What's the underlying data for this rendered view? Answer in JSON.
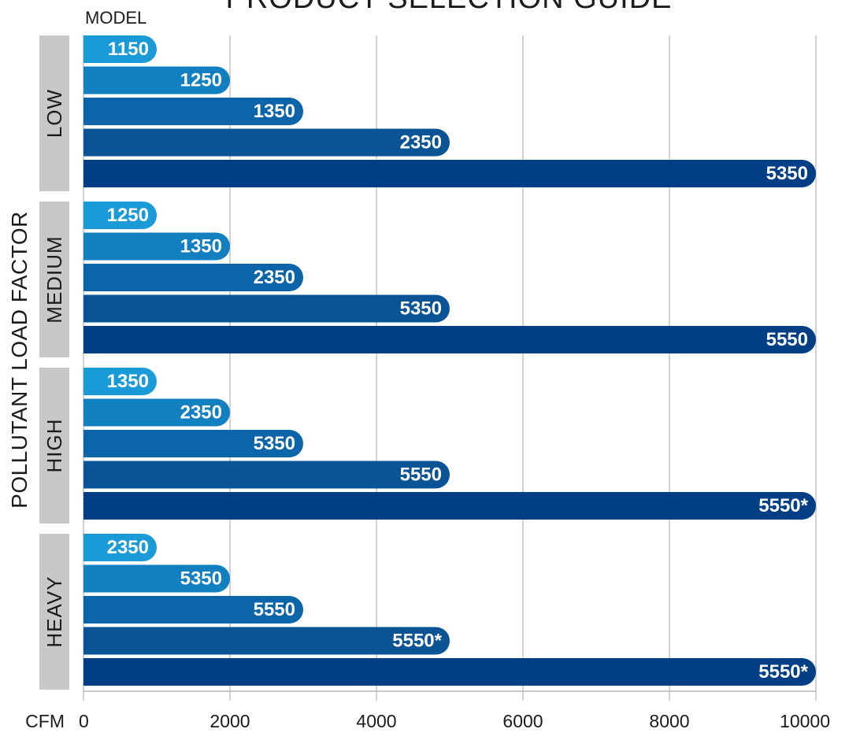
{
  "title": "PRODUCT SELECTION GUIDE",
  "chart_data": {
    "type": "bar",
    "orientation": "horizontal",
    "title": "PRODUCT SELECTION GUIDE",
    "bar_label_header": "MODEL",
    "ylabel": "POLLUTANT LOAD FACTOR",
    "xlabel": "CFM",
    "xlim": [
      0,
      10000
    ],
    "xticks": [
      0,
      2000,
      4000,
      6000,
      8000,
      10000
    ],
    "grid": true,
    "groups": [
      {
        "name": "LOW",
        "bars": [
          {
            "model": "1150",
            "cfm": 1000
          },
          {
            "model": "1250",
            "cfm": 2000
          },
          {
            "model": "1350",
            "cfm": 3000
          },
          {
            "model": "2350",
            "cfm": 5000
          },
          {
            "model": "5350",
            "cfm": 10000
          }
        ]
      },
      {
        "name": "MEDIUM",
        "bars": [
          {
            "model": "1250",
            "cfm": 1000
          },
          {
            "model": "1350",
            "cfm": 2000
          },
          {
            "model": "2350",
            "cfm": 3000
          },
          {
            "model": "5350",
            "cfm": 5000
          },
          {
            "model": "5550",
            "cfm": 10000
          }
        ]
      },
      {
        "name": "HIGH",
        "bars": [
          {
            "model": "1350",
            "cfm": 1000
          },
          {
            "model": "2350",
            "cfm": 2000
          },
          {
            "model": "5350",
            "cfm": 3000
          },
          {
            "model": "5550",
            "cfm": 5000
          },
          {
            "model": "5550*",
            "cfm": 10000
          }
        ]
      },
      {
        "name": "HEAVY",
        "bars": [
          {
            "model": "2350",
            "cfm": 1000
          },
          {
            "model": "5350",
            "cfm": 2000
          },
          {
            "model": "5550",
            "cfm": 3000
          },
          {
            "model": "5550*",
            "cfm": 5000
          },
          {
            "model": "5550*",
            "cfm": 10000
          }
        ]
      }
    ],
    "bar_colors": [
      "#1a9ad6",
      "#127fc0",
      "#0b65a8",
      "#0a5496",
      "#003f86"
    ],
    "group_band_color": "#c8c8c8",
    "grid_color": "#b5b5b5"
  }
}
